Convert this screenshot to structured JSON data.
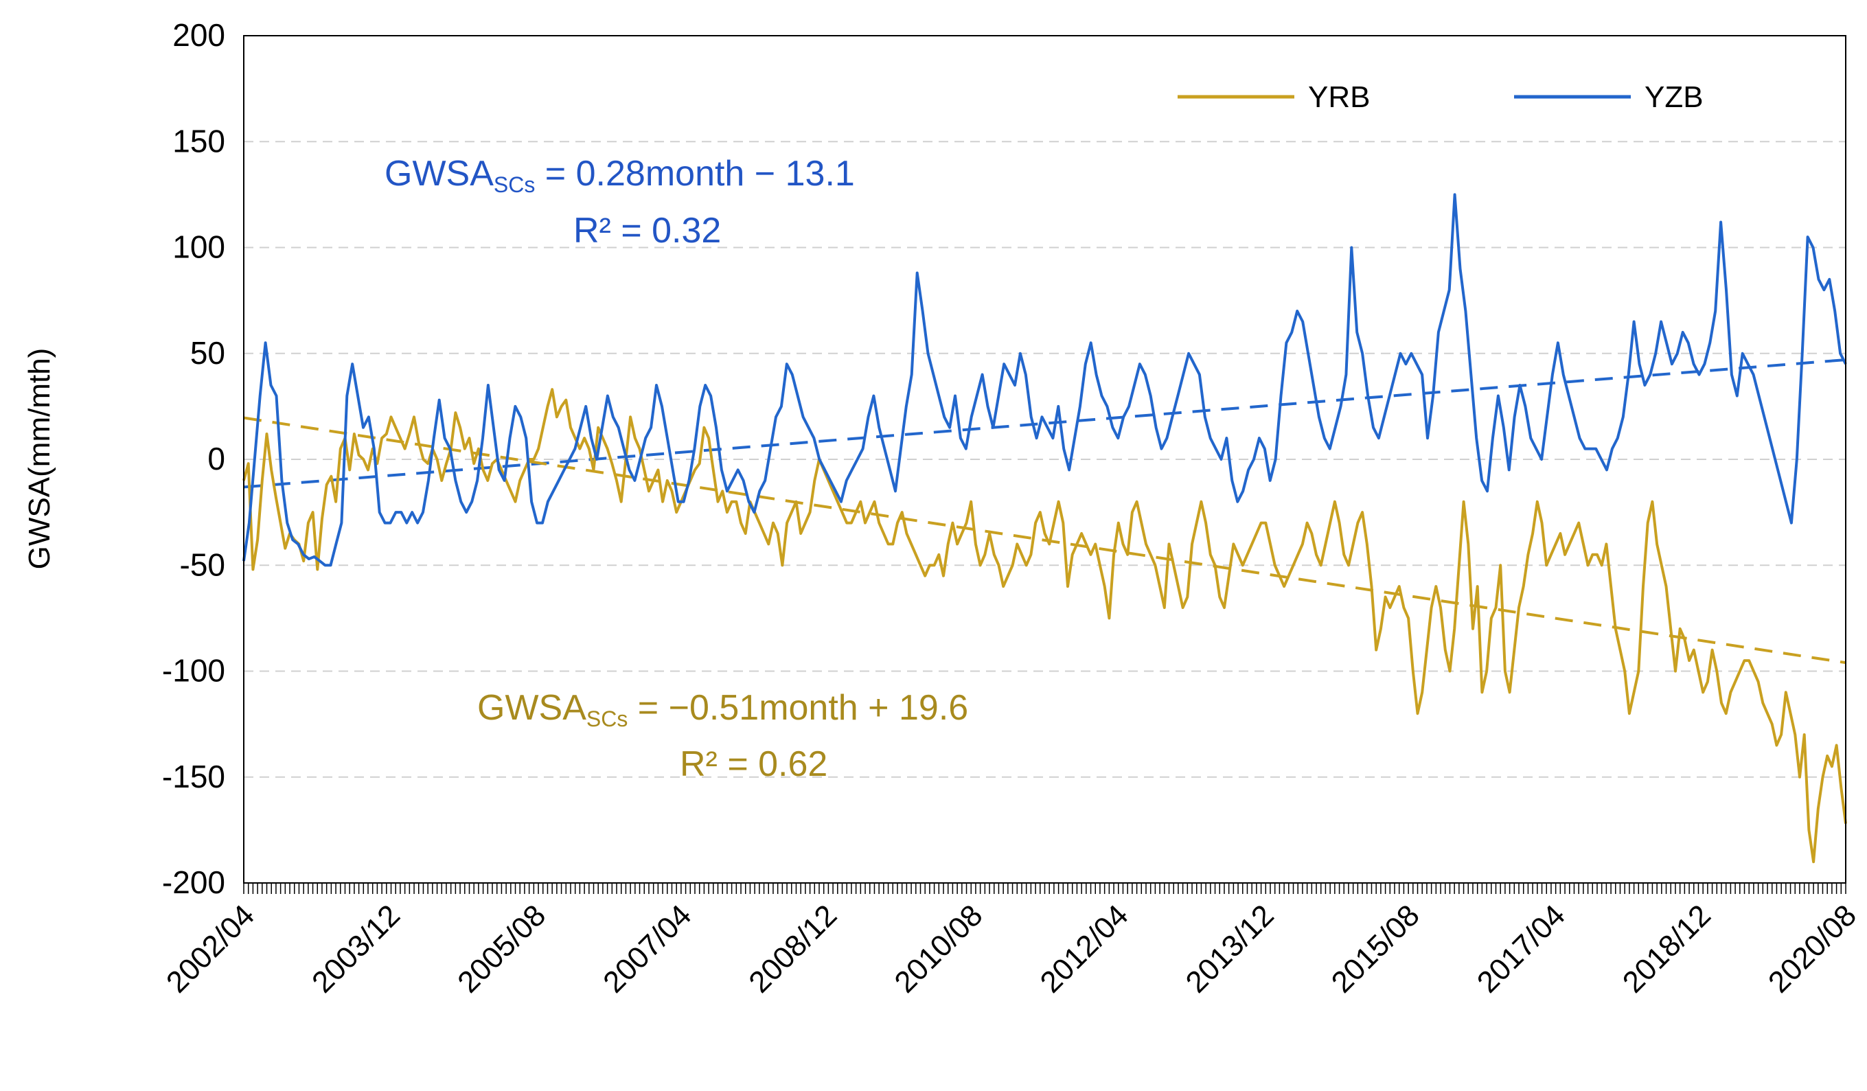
{
  "chart_data": {
    "type": "line",
    "title": "",
    "xlabel": "",
    "ylabel": "GWSA(mm/mth)",
    "ylim": [
      -200,
      200
    ],
    "yticks": [
      200,
      150,
      100,
      50,
      0,
      -50,
      -100,
      -150,
      -200
    ],
    "grid": "horizontal-dashed",
    "x_tick_labels": [
      "2002/04",
      "2003/12",
      "2005/08",
      "2007/04",
      "2008/12",
      "2010/08",
      "2012/04",
      "2013/12",
      "2015/08",
      "2017/04",
      "2018/12",
      "2020/08"
    ],
    "legend": {
      "position": "top-right",
      "entries": [
        "YRB",
        "YZB"
      ]
    },
    "series": [
      {
        "name": "YRB",
        "color": "#C9A020",
        "values": [
          -10,
          -2,
          -52,
          -38,
          -10,
          12,
          -5,
          -18,
          -30,
          -42,
          -35,
          -38,
          -40,
          -48,
          -30,
          -25,
          -52,
          -28,
          -12,
          -8,
          -20,
          5,
          10,
          -5,
          12,
          2,
          0,
          -5,
          5,
          -2,
          10,
          12,
          20,
          15,
          10,
          5,
          12,
          20,
          8,
          0,
          -2,
          5,
          0,
          -10,
          -2,
          5,
          22,
          15,
          5,
          10,
          -2,
          5,
          -5,
          -10,
          -2,
          0,
          -5,
          -10,
          -15,
          -20,
          -10,
          -5,
          0,
          0,
          5,
          15,
          25,
          33,
          20,
          25,
          28,
          15,
          10,
          5,
          10,
          5,
          -5,
          15,
          10,
          5,
          -2,
          -10,
          -20,
          0,
          20,
          10,
          5,
          -5,
          -15,
          -10,
          -5,
          -20,
          -10,
          -15,
          -25,
          -20,
          -15,
          -10,
          -5,
          -2,
          15,
          10,
          -5,
          -20,
          -15,
          -25,
          -20,
          -20,
          -30,
          -35,
          -20,
          -25,
          -30,
          -35,
          -40,
          -30,
          -35,
          -50,
          -30,
          -25,
          -20,
          -35,
          -30,
          -25,
          -10,
          0,
          -5,
          -10,
          -15,
          -20,
          -25,
          -30,
          -30,
          -25,
          -20,
          -30,
          -25,
          -20,
          -30,
          -35,
          -40,
          -40,
          -30,
          -25,
          -35,
          -40,
          -45,
          -50,
          -55,
          -50,
          -50,
          -45,
          -55,
          -40,
          -30,
          -40,
          -35,
          -30,
          -20,
          -40,
          -50,
          -45,
          -35,
          -45,
          -50,
          -60,
          -55,
          -50,
          -40,
          -45,
          -50,
          -45,
          -30,
          -25,
          -35,
          -40,
          -30,
          -20,
          -30,
          -60,
          -45,
          -40,
          -35,
          -40,
          -45,
          -40,
          -50,
          -60,
          -75,
          -45,
          -30,
          -40,
          -45,
          -25,
          -20,
          -30,
          -40,
          -45,
          -50,
          -60,
          -70,
          -40,
          -50,
          -60,
          -70,
          -65,
          -40,
          -30,
          -20,
          -30,
          -45,
          -50,
          -65,
          -70,
          -55,
          -40,
          -45,
          -50,
          -45,
          -40,
          -35,
          -30,
          -30,
          -40,
          -50,
          -55,
          -60,
          -55,
          -50,
          -45,
          -40,
          -30,
          -35,
          -45,
          -50,
          -40,
          -30,
          -20,
          -30,
          -45,
          -50,
          -40,
          -30,
          -25,
          -40,
          -60,
          -90,
          -80,
          -65,
          -70,
          -65,
          -60,
          -70,
          -75,
          -100,
          -120,
          -110,
          -90,
          -70,
          -60,
          -70,
          -90,
          -100,
          -80,
          -50,
          -20,
          -40,
          -80,
          -60,
          -110,
          -100,
          -75,
          -70,
          -50,
          -100,
          -110,
          -90,
          -70,
          -60,
          -45,
          -35,
          -20,
          -30,
          -50,
          -45,
          -40,
          -35,
          -45,
          -40,
          -35,
          -30,
          -40,
          -50,
          -45,
          -45,
          -50,
          -40,
          -60,
          -80,
          -90,
          -100,
          -120,
          -110,
          -100,
          -60,
          -30,
          -20,
          -40,
          -50,
          -60,
          -80,
          -100,
          -80,
          -85,
          -95,
          -90,
          -100,
          -110,
          -105,
          -90,
          -100,
          -115,
          -120,
          -110,
          -105,
          -100,
          -95,
          -95,
          -100,
          -105,
          -115,
          -120,
          -125,
          -135,
          -130,
          -110,
          -120,
          -130,
          -150,
          -130,
          -175,
          -190,
          -165,
          -150,
          -140,
          -145,
          -135,
          -155,
          -172
        ]
      },
      {
        "name": "YZB",
        "color": "#2266CC",
        "values": [
          -48,
          -30,
          0,
          30,
          55,
          35,
          30,
          -10,
          -30,
          -38,
          -40,
          -45,
          -47,
          -46,
          -48,
          -50,
          -50,
          -40,
          -30,
          30,
          45,
          30,
          15,
          20,
          5,
          -25,
          -30,
          -30,
          -25,
          -25,
          -30,
          -25,
          -30,
          -25,
          -10,
          10,
          28,
          10,
          5,
          -10,
          -20,
          -25,
          -20,
          -10,
          10,
          35,
          15,
          -5,
          -10,
          10,
          25,
          20,
          10,
          -20,
          -30,
          -30,
          -20,
          -15,
          -10,
          -5,
          0,
          5,
          15,
          25,
          10,
          0,
          15,
          30,
          20,
          15,
          5,
          -5,
          -10,
          0,
          10,
          15,
          35,
          25,
          10,
          -5,
          -20,
          -20,
          -10,
          5,
          25,
          35,
          30,
          15,
          -5,
          -15,
          -10,
          -5,
          -10,
          -20,
          -25,
          -15,
          -10,
          5,
          20,
          25,
          45,
          40,
          30,
          20,
          15,
          10,
          0,
          -5,
          -10,
          -15,
          -20,
          -10,
          -5,
          0,
          5,
          20,
          30,
          15,
          5,
          -5,
          -15,
          5,
          25,
          40,
          88,
          70,
          50,
          40,
          30,
          20,
          15,
          30,
          10,
          5,
          20,
          30,
          40,
          25,
          15,
          30,
          45,
          40,
          35,
          50,
          40,
          20,
          10,
          20,
          15,
          10,
          25,
          5,
          -5,
          10,
          25,
          45,
          55,
          40,
          30,
          25,
          15,
          10,
          20,
          25,
          35,
          45,
          40,
          30,
          15,
          5,
          10,
          20,
          30,
          40,
          50,
          45,
          40,
          20,
          10,
          5,
          0,
          10,
          -10,
          -20,
          -15,
          -5,
          0,
          10,
          5,
          -10,
          0,
          30,
          55,
          60,
          70,
          65,
          50,
          35,
          20,
          10,
          5,
          15,
          25,
          40,
          100,
          60,
          50,
          30,
          15,
          10,
          20,
          30,
          40,
          50,
          45,
          50,
          45,
          40,
          10,
          30,
          60,
          70,
          80,
          125,
          90,
          70,
          40,
          10,
          -10,
          -15,
          10,
          30,
          15,
          -5,
          20,
          35,
          25,
          10,
          5,
          0,
          20,
          40,
          55,
          40,
          30,
          20,
          10,
          5,
          5,
          5,
          0,
          -5,
          5,
          10,
          20,
          40,
          65,
          45,
          35,
          40,
          50,
          65,
          55,
          45,
          50,
          60,
          55,
          45,
          40,
          45,
          55,
          70,
          112,
          80,
          40,
          30,
          50,
          45,
          40,
          30,
          20,
          10,
          0,
          -10,
          -20,
          -30,
          0,
          50,
          105,
          100,
          85,
          80,
          85,
          70,
          50,
          45
        ]
      }
    ],
    "trendlines": [
      {
        "series": "YZB",
        "equation_label": "GWSA",
        "equation_sub": "SCs",
        "equation_rest": " = 0.28month − 13.1",
        "r2_label": "R² = 0.32",
        "start_value": -13.1,
        "end_value": 47
      },
      {
        "series": "YRB",
        "equation_label": "GWSA",
        "equation_sub": "SCs",
        "equation_rest": " = −0.51month + 19.6",
        "r2_label": "R² = 0.62",
        "start_value": 19.6,
        "end_value": -96
      }
    ]
  }
}
